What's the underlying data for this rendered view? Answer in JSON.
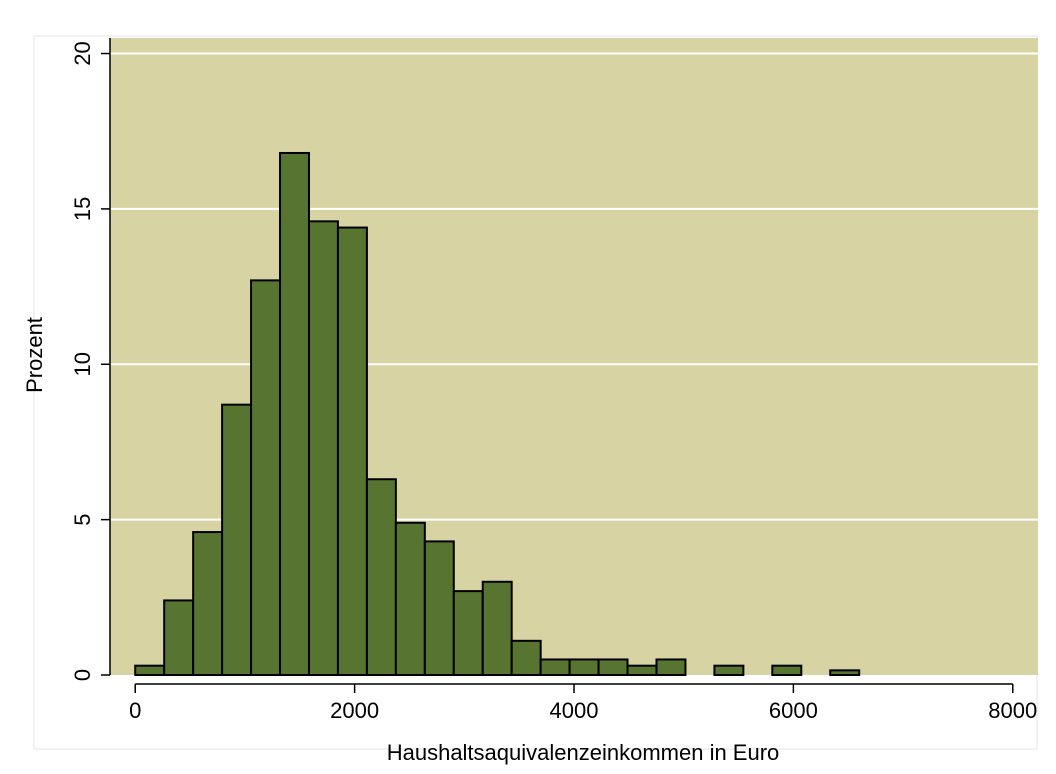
{
  "chart_data": {
    "type": "bar",
    "subtype": "histogram",
    "xlabel": "Haushaltsaquivalenzeinkommen in Euro",
    "ylabel": "Prozent",
    "xlim": [
      -230,
      8230
    ],
    "ylim": [
      0,
      20.5
    ],
    "xticks": [
      0,
      2000,
      4000,
      6000,
      8000
    ],
    "xtick_labels": [
      "0",
      "2000",
      "4000",
      "6000",
      "8000"
    ],
    "yticks": [
      0,
      5,
      10,
      15,
      20
    ],
    "ytick_labels": [
      "0",
      "5",
      "10",
      "15",
      "20"
    ],
    "grid": true,
    "grid_axis": "y",
    "bin_width": 264,
    "bins": [
      {
        "start": 0,
        "value": 0.3
      },
      {
        "start": 264,
        "value": 2.4
      },
      {
        "start": 528,
        "value": 4.6
      },
      {
        "start": 792,
        "value": 8.7
      },
      {
        "start": 1056,
        "value": 12.7
      },
      {
        "start": 1320,
        "value": 16.8
      },
      {
        "start": 1584,
        "value": 14.6
      },
      {
        "start": 1848,
        "value": 14.4
      },
      {
        "start": 2112,
        "value": 6.3
      },
      {
        "start": 2376,
        "value": 4.9
      },
      {
        "start": 2640,
        "value": 4.3
      },
      {
        "start": 2904,
        "value": 2.7
      },
      {
        "start": 3168,
        "value": 3.0
      },
      {
        "start": 3432,
        "value": 1.1
      },
      {
        "start": 3696,
        "value": 0.5
      },
      {
        "start": 3960,
        "value": 0.5
      },
      {
        "start": 4224,
        "value": 0.5
      },
      {
        "start": 4488,
        "value": 0.3
      },
      {
        "start": 4752,
        "value": 0.5
      },
      {
        "start": 5280,
        "value": 0.3
      },
      {
        "start": 5808,
        "value": 0.3
      },
      {
        "start": 6336,
        "value": 0.15
      }
    ],
    "colors": {
      "plot_background": "#d8d3a3",
      "bar_fill": "#577431",
      "bar_stroke": "#000000",
      "gridline": "#ffffff",
      "outer_background": "#ffffff",
      "frame": "#e6e6e6"
    }
  }
}
